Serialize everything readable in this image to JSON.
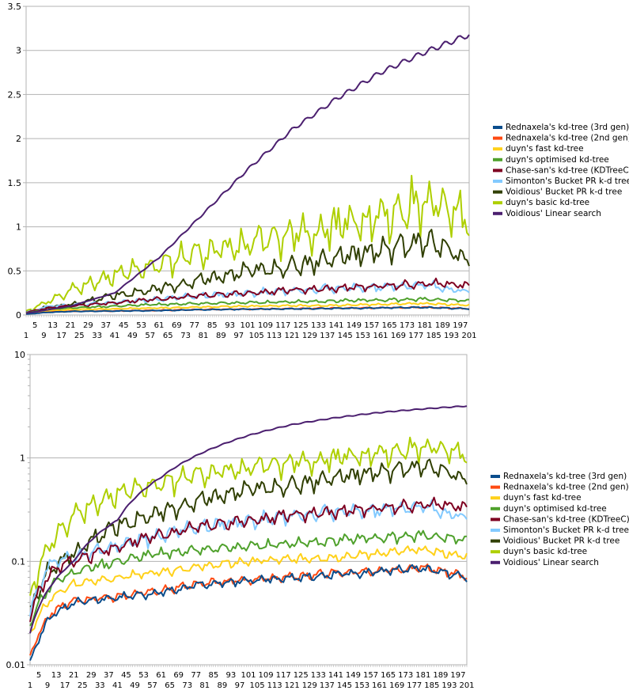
{
  "chart_data": [
    {
      "type": "line",
      "yscale": "linear",
      "ylim": [
        0,
        3.5
      ],
      "yticks": [
        "0",
        "0.5",
        "1",
        "1.5",
        "2",
        "2.5",
        "3",
        "3.5"
      ],
      "xlim": [
        1,
        201
      ],
      "xticks_top": [
        "5",
        "13",
        "21",
        "29",
        "37",
        "45",
        "53",
        "61",
        "69",
        "77",
        "85",
        "93",
        "101",
        "109",
        "117",
        "125",
        "133",
        "141",
        "149",
        "157",
        "165",
        "173",
        "181",
        "189",
        "197"
      ],
      "xticks_bottom": [
        "1",
        "9",
        "17",
        "25",
        "33",
        "41",
        "49",
        "57",
        "65",
        "73",
        "81",
        "89",
        "97",
        "105",
        "113",
        "121",
        "129",
        "137",
        "145",
        "153",
        "161",
        "169",
        "177",
        "185",
        "193",
        "201"
      ],
      "grid": "horizontal",
      "legend_position": "right",
      "series": [
        {
          "name": "Rednaxela's kd-tree (3rd gen)",
          "color": "#0a4d8c",
          "x": [
            1,
            11,
            21,
            41,
            61,
            81,
            101,
            121,
            141,
            161,
            181,
            201
          ],
          "y": [
            0.01,
            0.03,
            0.04,
            0.045,
            0.05,
            0.06,
            0.065,
            0.07,
            0.075,
            0.08,
            0.085,
            0.07
          ]
        },
        {
          "name": "Rednaxela's kd-tree (2nd gen)",
          "color": "#ff4a12",
          "x": [
            1,
            11,
            21,
            41,
            61,
            81,
            101,
            121,
            141,
            161,
            181,
            201
          ],
          "y": [
            0.012,
            0.032,
            0.042,
            0.046,
            0.052,
            0.062,
            0.066,
            0.072,
            0.077,
            0.082,
            0.087,
            0.072
          ]
        },
        {
          "name": "duyn's fast kd-tree",
          "color": "#ffd11a",
          "x": [
            1,
            11,
            21,
            41,
            61,
            81,
            101,
            121,
            141,
            161,
            181,
            201
          ],
          "y": [
            0.02,
            0.045,
            0.06,
            0.07,
            0.08,
            0.09,
            0.1,
            0.105,
            0.11,
            0.12,
            0.13,
            0.11
          ]
        },
        {
          "name": "duyn's optimised kd-tree",
          "color": "#4fa12c",
          "x": [
            1,
            11,
            21,
            41,
            61,
            81,
            101,
            121,
            141,
            161,
            181,
            201
          ],
          "y": [
            0.025,
            0.06,
            0.08,
            0.1,
            0.12,
            0.13,
            0.14,
            0.15,
            0.16,
            0.17,
            0.18,
            0.16
          ]
        },
        {
          "name": "Chase-san's kd-tree (KDTreeC)",
          "color": "#7e0021",
          "x": [
            1,
            11,
            21,
            41,
            61,
            81,
            101,
            121,
            141,
            161,
            181,
            201
          ],
          "y": [
            0.03,
            0.08,
            0.1,
            0.14,
            0.18,
            0.22,
            0.25,
            0.28,
            0.3,
            0.33,
            0.36,
            0.33
          ]
        },
        {
          "name": "Simonton's Bucket PR k-d tree",
          "color": "#83caff",
          "x": [
            1,
            11,
            21,
            41,
            61,
            81,
            101,
            121,
            141,
            161,
            181,
            201
          ],
          "y": [
            0.03,
            0.1,
            0.11,
            0.14,
            0.18,
            0.22,
            0.25,
            0.28,
            0.3,
            0.32,
            0.34,
            0.26
          ]
        },
        {
          "name": "Voidious' Bucket PR k-d tree",
          "color": "#314004",
          "x": [
            1,
            11,
            21,
            41,
            61,
            81,
            101,
            121,
            141,
            161,
            181,
            201
          ],
          "y": [
            0.03,
            0.09,
            0.12,
            0.22,
            0.3,
            0.4,
            0.5,
            0.55,
            0.65,
            0.75,
            0.85,
            0.62
          ]
        },
        {
          "name": "duyn's basic kd-tree",
          "color": "#aecf00",
          "x": [
            1,
            11,
            21,
            41,
            61,
            81,
            101,
            121,
            141,
            161,
            181,
            201
          ],
          "y": [
            0.04,
            0.15,
            0.28,
            0.45,
            0.58,
            0.72,
            0.8,
            0.9,
            1.0,
            1.1,
            1.3,
            1.1
          ]
        },
        {
          "name": "Voidious' Linear search",
          "color": "#4b1f6f",
          "x": [
            1,
            11,
            21,
            41,
            61,
            81,
            101,
            121,
            141,
            161,
            181,
            201
          ],
          "y": [
            0.02,
            0.06,
            0.1,
            0.25,
            0.65,
            1.15,
            1.65,
            2.1,
            2.45,
            2.75,
            2.98,
            3.18
          ]
        }
      ]
    },
    {
      "type": "line",
      "yscale": "log",
      "ylim": [
        0.01,
        10
      ],
      "yticks": [
        "0.01",
        "0.1",
        "1",
        "10"
      ],
      "xlim": [
        1,
        201
      ],
      "xticks_top": [
        "5",
        "13",
        "21",
        "29",
        "37",
        "45",
        "53",
        "61",
        "69",
        "77",
        "85",
        "93",
        "101",
        "109",
        "117",
        "125",
        "133",
        "141",
        "149",
        "157",
        "165",
        "173",
        "181",
        "189",
        "197"
      ],
      "xticks_bottom": [
        "1",
        "9",
        "17",
        "25",
        "33",
        "41",
        "49",
        "57",
        "65",
        "73",
        "81",
        "89",
        "97",
        "105",
        "113",
        "121",
        "129",
        "137",
        "145",
        "153",
        "161",
        "169",
        "177",
        "185",
        "193",
        "201"
      ],
      "grid": "horizontal",
      "legend_position": "right",
      "series_same_as_first_chart": true
    }
  ],
  "noise_seed": 7
}
